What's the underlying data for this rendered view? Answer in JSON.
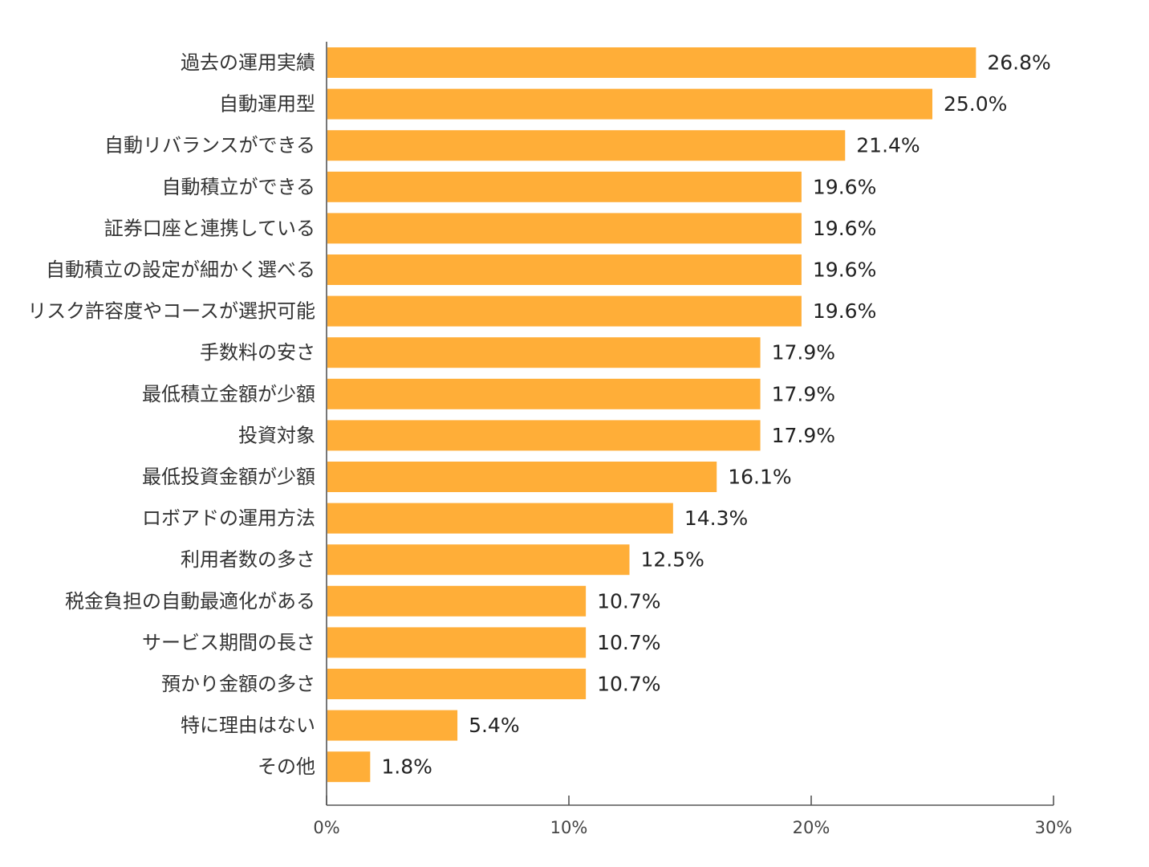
{
  "chart_data": {
    "type": "bar",
    "orientation": "horizontal",
    "categories": [
      "過去の運用実績",
      "自動運用型",
      "自動リバランスができる",
      "自動積立ができる",
      "証券口座と連携している",
      "自動積立の設定が細かく選べる",
      "リスク許容度やコースが選択可能",
      "手数料の安さ",
      "最低積立金額が少額",
      "投資対象",
      "最低投資金額が少額",
      "ロボアドの運用方法",
      "利用者数の多さ",
      "税金負担の自動最適化がある",
      "サービス期間の長さ",
      "預かり金額の多さ",
      "特に理由はない",
      "その他"
    ],
    "values": [
      26.8,
      25.0,
      21.4,
      19.6,
      19.6,
      19.6,
      19.6,
      17.9,
      17.9,
      17.9,
      16.1,
      14.3,
      12.5,
      10.7,
      10.7,
      10.7,
      5.4,
      1.8
    ],
    "value_labels": [
      "26.8%",
      "25.0%",
      "21.4%",
      "19.6%",
      "19.6%",
      "19.6%",
      "19.6%",
      "17.9%",
      "17.9%",
      "17.9%",
      "16.1%",
      "14.3%",
      "12.5%",
      "10.7%",
      "10.7%",
      "10.7%",
      "5.4%",
      "1.8%"
    ],
    "xlim": [
      0,
      30
    ],
    "x_ticks": [
      0,
      10,
      20,
      30
    ],
    "x_tick_labels": [
      "0%",
      "10%",
      "20%",
      "30%"
    ],
    "title": "",
    "xlabel": "",
    "ylabel": "",
    "grid": false,
    "bar_color": "#FFAE38"
  }
}
